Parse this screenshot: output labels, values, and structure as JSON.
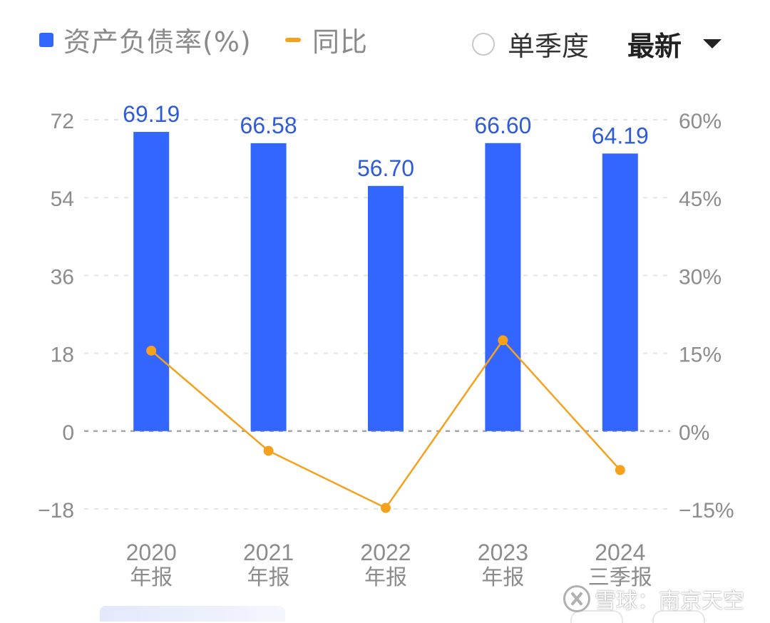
{
  "legend": {
    "bar_label": "资产负债率(%)",
    "line_label": "同比",
    "bar_color": "#3366ff",
    "line_color": "#f5a11c"
  },
  "controls": {
    "radio_label": "单季度",
    "dropdown_value": "最新",
    "radio_selected": false
  },
  "watermark": {
    "text": "雪球：南京天空"
  },
  "chart_data": {
    "type": "bar",
    "categories": [
      [
        "2020",
        "年报"
      ],
      [
        "2021",
        "年报"
      ],
      [
        "2022",
        "年报"
      ],
      [
        "2023",
        "年报"
      ],
      [
        "2024",
        "三季报"
      ]
    ],
    "series": [
      {
        "name": "资产负债率(%)",
        "type": "bar",
        "axis": "left",
        "values": [
          69.19,
          66.58,
          56.7,
          66.6,
          64.19
        ],
        "labels": [
          "69.19",
          "66.58",
          "56.70",
          "66.60",
          "64.19"
        ],
        "color": "#3366ff"
      },
      {
        "name": "同比",
        "type": "line",
        "axis": "right",
        "values": [
          15.5,
          -3.8,
          -14.8,
          17.5,
          -7.5
        ],
        "unit": "%",
        "color": "#f5a11c"
      }
    ],
    "y_left": {
      "ticks": [
        72,
        54,
        36,
        18,
        0,
        -18
      ],
      "tick_labels": [
        "72",
        "54",
        "36",
        "18",
        "0",
        "−18"
      ],
      "ylim": [
        -18,
        72
      ]
    },
    "y_right": {
      "ticks": [
        60,
        45,
        30,
        15,
        0,
        -15
      ],
      "tick_labels": [
        "60%",
        "45%",
        "30%",
        "15%",
        "0%",
        "−15%"
      ],
      "ylim": [
        -15,
        60
      ]
    },
    "grid": true,
    "legend_position": "top-left"
  }
}
